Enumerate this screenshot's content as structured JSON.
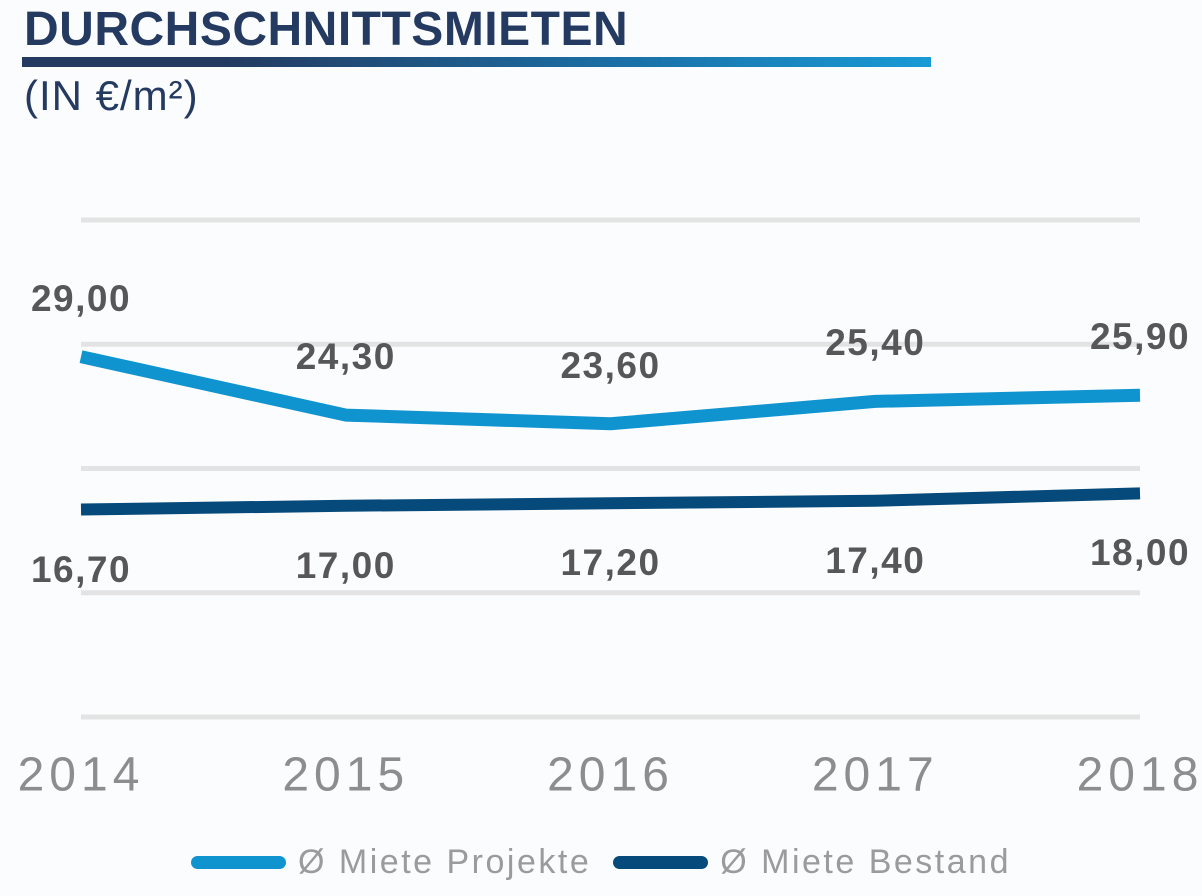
{
  "header": {
    "title": "DURCHSCHNITTSMIETEN",
    "subtitle": "(IN €/m²)"
  },
  "colors": {
    "title_navy": "#243a60",
    "underline_gradient_start": "#243a60",
    "underline_gradient_end": "#199ad6",
    "projekte_blue": "#1094d0",
    "bestand_navy": "#054a7a",
    "gridline": "#e3e3e3",
    "value_label": "#57575a",
    "year_label": "#8d8d8f",
    "legend_text": "#9b9b9b",
    "background": "#fbfcfe"
  },
  "chart_data": {
    "type": "line",
    "title": "DURCHSCHNITTSMIETEN",
    "subtitle": "(IN €/m²)",
    "xlabel": "",
    "ylabel": "€/m²",
    "categories": [
      "2014",
      "2015",
      "2016",
      "2017",
      "2018"
    ],
    "series": [
      {
        "name": "Ø Miete Projekte",
        "values": [
          29.0,
          24.3,
          23.6,
          25.4,
          25.9
        ],
        "labels": [
          "29,00",
          "24,30",
          "23,60",
          "25,40",
          "25,90"
        ],
        "color": "#1094d0",
        "label_side": "above"
      },
      {
        "name": "Ø Miete Bestand",
        "values": [
          16.7,
          17.0,
          17.2,
          17.4,
          18.0
        ],
        "labels": [
          "16,70",
          "17,00",
          "17,20",
          "17,40",
          "18,00"
        ],
        "color": "#054a7a",
        "label_side": "below"
      }
    ],
    "ylim": [
      0,
      40
    ],
    "gridline_values": [
      0,
      10,
      20,
      30,
      40
    ],
    "grid": true,
    "legend_position": "bottom"
  },
  "legend": {
    "items": [
      {
        "label": "Ø Miete Projekte",
        "color": "#1094d0"
      },
      {
        "label": "Ø Miete Bestand",
        "color": "#054a7a"
      }
    ]
  }
}
